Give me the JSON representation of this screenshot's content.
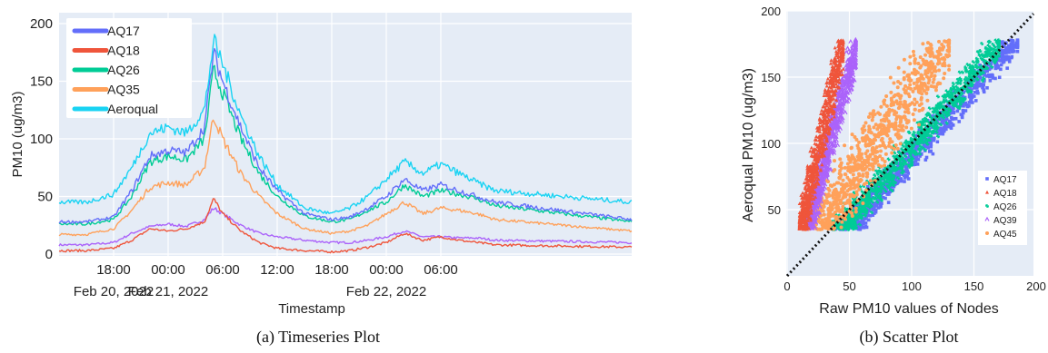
{
  "chart_data": [
    {
      "type": "line",
      "caption": "(a) Timeseries Plot",
      "xlabel": "Timestamp",
      "ylabel": "PM10 (ug/m3)",
      "ylim": [
        0,
        200
      ],
      "yticks": [
        0,
        50,
        100,
        150,
        200
      ],
      "x_range": [
        "2022-02-20 12:00",
        "2022-02-23 03:00"
      ],
      "xticks": [
        {
          "time": "2022-02-20 18:00",
          "label": "18:00",
          "sublabel": "Feb 20, 2022"
        },
        {
          "time": "2022-02-21 00:00",
          "label": "00:00",
          "sublabel": "Feb 21, 2022"
        },
        {
          "time": "2022-02-21 06:00",
          "label": "06:00",
          "sublabel": ""
        },
        {
          "time": "2022-02-21 12:00",
          "label": "12:00",
          "sublabel": ""
        },
        {
          "time": "2022-02-21 18:00",
          "label": "18:00",
          "sublabel": ""
        },
        {
          "time": "2022-02-22 00:00",
          "label": "00:00",
          "sublabel": "Feb 22, 2022"
        },
        {
          "time": "2022-02-22 06:00",
          "label": "06:00",
          "sublabel": ""
        }
      ],
      "grid": true,
      "legend_position": "top-left",
      "x": [
        "2022-02-20 12:00",
        "2022-02-20 15:00",
        "2022-02-20 18:00",
        "2022-02-20 20:00",
        "2022-02-20 22:00",
        "2022-02-21 00:00",
        "2022-02-21 02:00",
        "2022-02-21 04:00",
        "2022-02-21 05:00",
        "2022-02-21 06:00",
        "2022-02-21 08:00",
        "2022-02-21 10:00",
        "2022-02-21 12:00",
        "2022-02-21 15:00",
        "2022-02-21 18:00",
        "2022-02-21 20:00",
        "2022-02-21 22:00",
        "2022-02-22 00:00",
        "2022-02-22 02:00",
        "2022-02-22 04:00",
        "2022-02-22 06:00",
        "2022-02-22 08:00",
        "2022-02-22 10:00",
        "2022-02-22 12:00",
        "2022-02-23 03:00"
      ],
      "series": [
        {
          "name": "AQ17",
          "color": "#636efa",
          "values": [
            28,
            28,
            32,
            55,
            85,
            90,
            88,
            110,
            175,
            150,
            110,
            75,
            55,
            35,
            30,
            32,
            40,
            50,
            65,
            55,
            60,
            55,
            50,
            45,
            30
          ]
        },
        {
          "name": "AQ18",
          "color": "#ef553b",
          "values": [
            3,
            3,
            5,
            12,
            22,
            20,
            22,
            28,
            48,
            35,
            20,
            10,
            5,
            3,
            2,
            3,
            6,
            10,
            18,
            12,
            15,
            12,
            10,
            8,
            6
          ]
        },
        {
          "name": "AQ26",
          "color": "#00cc96",
          "values": [
            26,
            26,
            30,
            50,
            80,
            85,
            82,
            100,
            160,
            140,
            100,
            70,
            50,
            33,
            28,
            30,
            38,
            45,
            60,
            50,
            55,
            52,
            48,
            42,
            28
          ]
        },
        {
          "name": "AQ35",
          "color": "#ffa15a",
          "values": [
            17,
            17,
            22,
            38,
            58,
            62,
            60,
            75,
            120,
            100,
            70,
            50,
            35,
            22,
            18,
            20,
            25,
            35,
            45,
            35,
            40,
            38,
            35,
            30,
            20
          ]
        },
        {
          "name": "Aeroqual",
          "color": "#19d3f3",
          "values": [
            45,
            45,
            52,
            75,
            105,
            110,
            105,
            125,
            185,
            165,
            120,
            85,
            60,
            40,
            35,
            40,
            50,
            65,
            80,
            70,
            78,
            70,
            62,
            55,
            45
          ]
        },
        {
          "name": "",
          "color": "#ab63fa",
          "values": [
            8,
            8,
            10,
            18,
            24,
            26,
            24,
            30,
            40,
            35,
            25,
            18,
            15,
            12,
            10,
            10,
            12,
            15,
            20,
            15,
            15,
            14,
            14,
            12,
            10
          ]
        }
      ]
    },
    {
      "type": "scatter",
      "caption": "(b) Scatter Plot",
      "xlabel": "Raw PM10 values of Nodes",
      "ylabel": "Aeroqual PM10 (ug/m3)",
      "xlim": [
        0,
        200
      ],
      "ylim": [
        0,
        200
      ],
      "xticks": [
        0,
        50,
        100,
        150,
        200
      ],
      "yticks": [
        50,
        100,
        150,
        200
      ],
      "grid": true,
      "legend_position": "right",
      "reference_line": "y = x (dotted)",
      "series": [
        {
          "name": "AQ17",
          "color": "#636efa",
          "marker": "square",
          "x_range": [
            30,
            185
          ],
          "y_range": [
            35,
            178
          ],
          "slope": 1.05,
          "intercept": -15
        },
        {
          "name": "AQ18",
          "color": "#ef553b",
          "marker": "triangle",
          "x_range": [
            10,
            45
          ],
          "y_range": [
            35,
            178
          ],
          "slope": 4.2,
          "intercept": -12
        },
        {
          "name": "AQ26",
          "color": "#00cc96",
          "marker": "star",
          "x_range": [
            25,
            170
          ],
          "y_range": [
            35,
            178
          ],
          "slope": 1.1,
          "intercept": -12
        },
        {
          "name": "AQ39",
          "color": "#ab63fa",
          "marker": "tri",
          "x_range": [
            15,
            55
          ],
          "y_range": [
            35,
            178
          ],
          "slope": 3.5,
          "intercept": -20
        },
        {
          "name": "AQ45",
          "color": "#ffa15a",
          "marker": "circle",
          "x_range": [
            15,
            130
          ],
          "y_range": [
            35,
            178
          ],
          "slope": 1.35,
          "intercept": 5
        }
      ]
    }
  ]
}
